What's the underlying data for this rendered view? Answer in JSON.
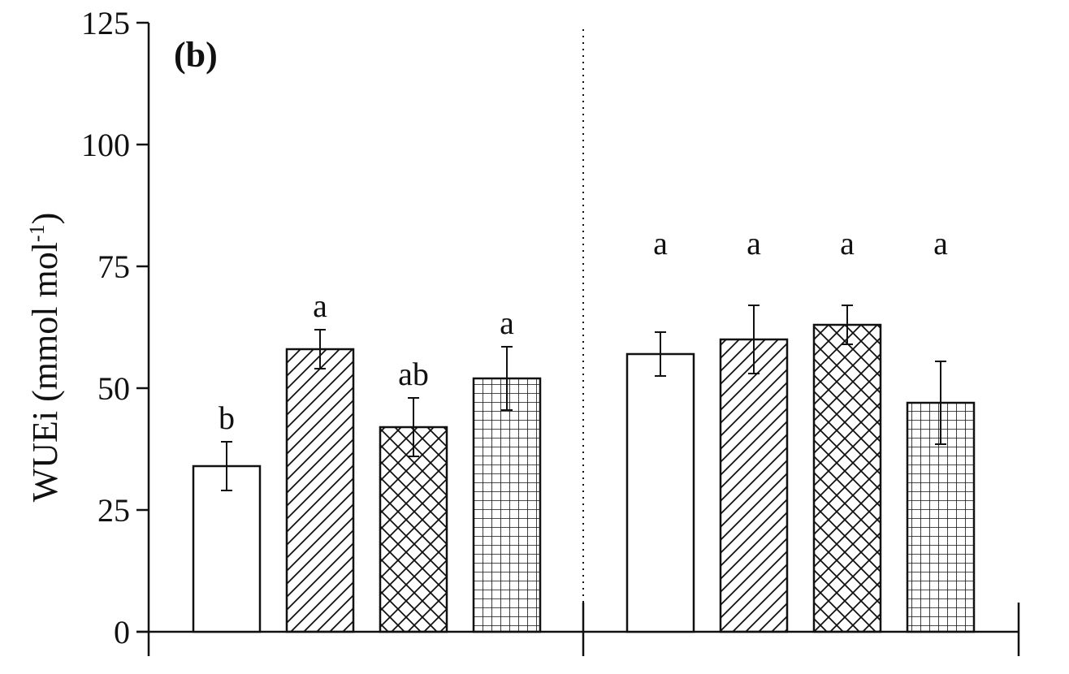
{
  "chart_data": {
    "type": "bar",
    "panel_label": "(b)",
    "ylabel": "WUEi (mmol mol",
    "ylabel_sup": "-1",
    "ylabel_close": ")",
    "ylim": [
      0,
      125
    ],
    "yticks": [
      "0",
      "25",
      "50",
      "75",
      "100",
      "125"
    ],
    "grid": false,
    "legend": "none",
    "groups": [
      {
        "bars": [
          {
            "pattern": "open",
            "value": 34,
            "err": 5,
            "sig": "b"
          },
          {
            "pattern": "diagonal",
            "value": 58,
            "err": 4,
            "sig": "a"
          },
          {
            "pattern": "crosshatch",
            "value": 42,
            "err": 6,
            "sig": "ab"
          },
          {
            "pattern": "grid",
            "value": 52,
            "err": 6.5,
            "sig": "a"
          }
        ]
      },
      {
        "bars": [
          {
            "pattern": "open",
            "value": 57,
            "err": 4.5,
            "sig": "a"
          },
          {
            "pattern": "diagonal",
            "value": 60,
            "err": 7,
            "sig": "a"
          },
          {
            "pattern": "crosshatch",
            "value": 63,
            "err": 4,
            "sig": "a"
          },
          {
            "pattern": "grid",
            "value": 47,
            "err": 8.5,
            "sig": "a"
          }
        ]
      }
    ]
  }
}
